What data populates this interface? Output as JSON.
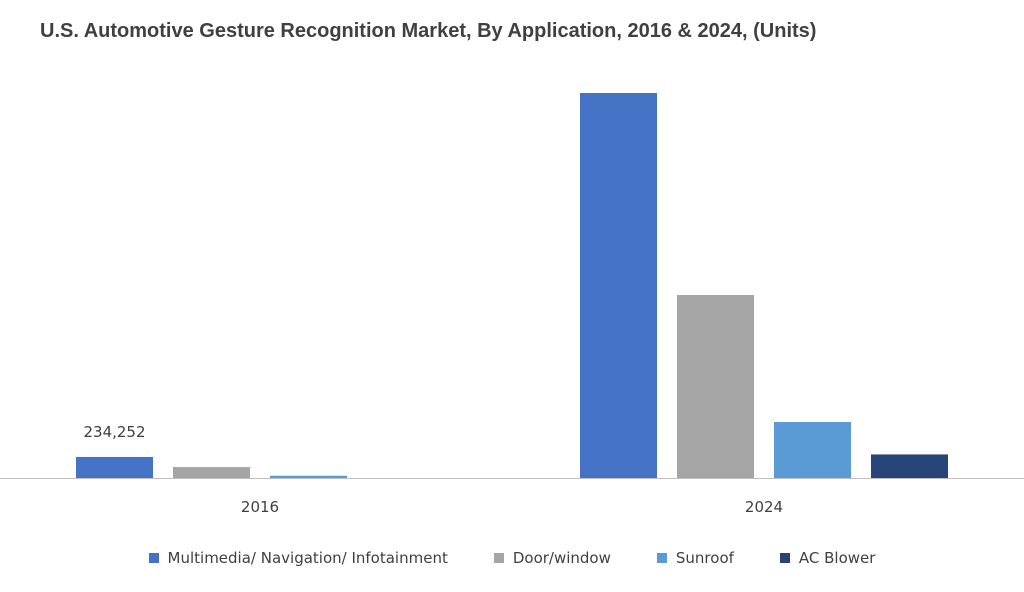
{
  "chart_data": {
    "type": "bar",
    "title": "U.S. Automotive Gesture Recognition Market, By Application, 2016 & 2024, (Units)",
    "categories": [
      "2016",
      "2024"
    ],
    "series": [
      {
        "name": "Multimedia/ Navigation/ Infotainment",
        "color": "#4472C4",
        "values": [
          234252,
          4283000
        ]
      },
      {
        "name": "Door/window",
        "color": "#A5A5A5",
        "values": [
          122000,
          2036000
        ]
      },
      {
        "name": "Sunroof",
        "color": "#5B9BD5",
        "values": [
          25000,
          623000
        ]
      },
      {
        "name": "AC Blower",
        "color": "#264478",
        "values": [
          0,
          262000
        ]
      }
    ],
    "data_labels": [
      {
        "series": 0,
        "category": 0,
        "text": "234,252"
      }
    ],
    "xlabel": "",
    "ylabel": "",
    "ylim": [
      0,
      4650000
    ],
    "grid": false,
    "legend_position": "bottom"
  }
}
